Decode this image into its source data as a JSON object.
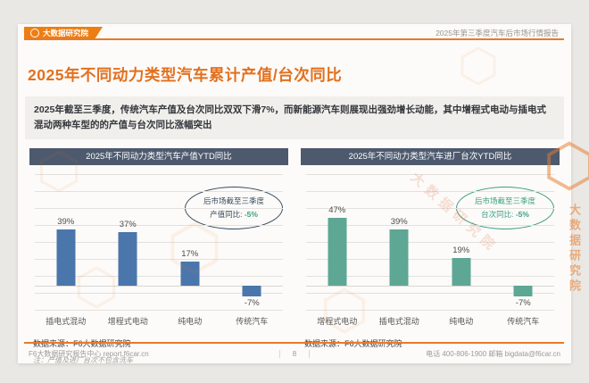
{
  "header": {
    "brand": "大数据研究院",
    "report_title": "2025年第三季度汽车后市场行情报告"
  },
  "title": "2025年不同动力类型汽车累计产值/台次同比",
  "summary": "2025年截至三季度，传统汽车产值及台次同比双双下滑7%，而新能源汽车则展现出强劲增长动能，其中增程式电动与插电式混动两种车型的的产值与台次同比涨幅突出",
  "watermark_text": "大数据研究院",
  "colors": {
    "accent_orange": "#e3701e",
    "panel_header": "#4d5a6e",
    "bar_blue": "#4b76ab",
    "bar_green": "#5da794",
    "annotation_navy": "#374a5e",
    "annotation_green": "#3d9c82"
  },
  "chart_data": [
    {
      "type": "bar",
      "title": "2025年不同动力类型汽车产值YTD同比",
      "categories": [
        "插电式混动",
        "增程式电动",
        "纯电动",
        "传统汽车"
      ],
      "values": [
        39,
        37,
        17,
        -7
      ],
      "value_labels": [
        "39%",
        "37%",
        "17%",
        "-7%"
      ],
      "unit": "%",
      "bar_color": "#4b76ab",
      "ylim": [
        -16,
        77
      ],
      "grid": true,
      "annotation": {
        "line1": "后市场截至三季度",
        "label": "产值同比:",
        "value": "-5%",
        "color": "#374a5e",
        "value_color": "#3d9c82"
      },
      "source": "数据来源：F6大数据研究院",
      "note": "注：产值及进厂台次不包含洗车"
    },
    {
      "type": "bar",
      "title": "2025年不同动力类型汽车进厂台次YTD同比",
      "categories": [
        "增程式电动",
        "插电式混动",
        "纯电动",
        "传统汽车"
      ],
      "values": [
        47,
        39,
        19,
        -7
      ],
      "value_labels": [
        "47%",
        "39%",
        "19%",
        "-7%"
      ],
      "unit": "%",
      "bar_color": "#5da794",
      "ylim": [
        -16,
        77
      ],
      "grid": true,
      "annotation": {
        "line1": "后市场截至三季度",
        "label": "台次同比:",
        "value": "-5%",
        "color": "#3d9c82",
        "value_color": "#3d9c82"
      },
      "source": "数据来源：F6大数据研究院",
      "note": ""
    }
  ],
  "footer": {
    "left": "F6大数据研究报告中心 report.f6car.cn",
    "page_number": "8",
    "right": "电话 400-806-1900 邮箱 bigdata@f6car.cn"
  }
}
